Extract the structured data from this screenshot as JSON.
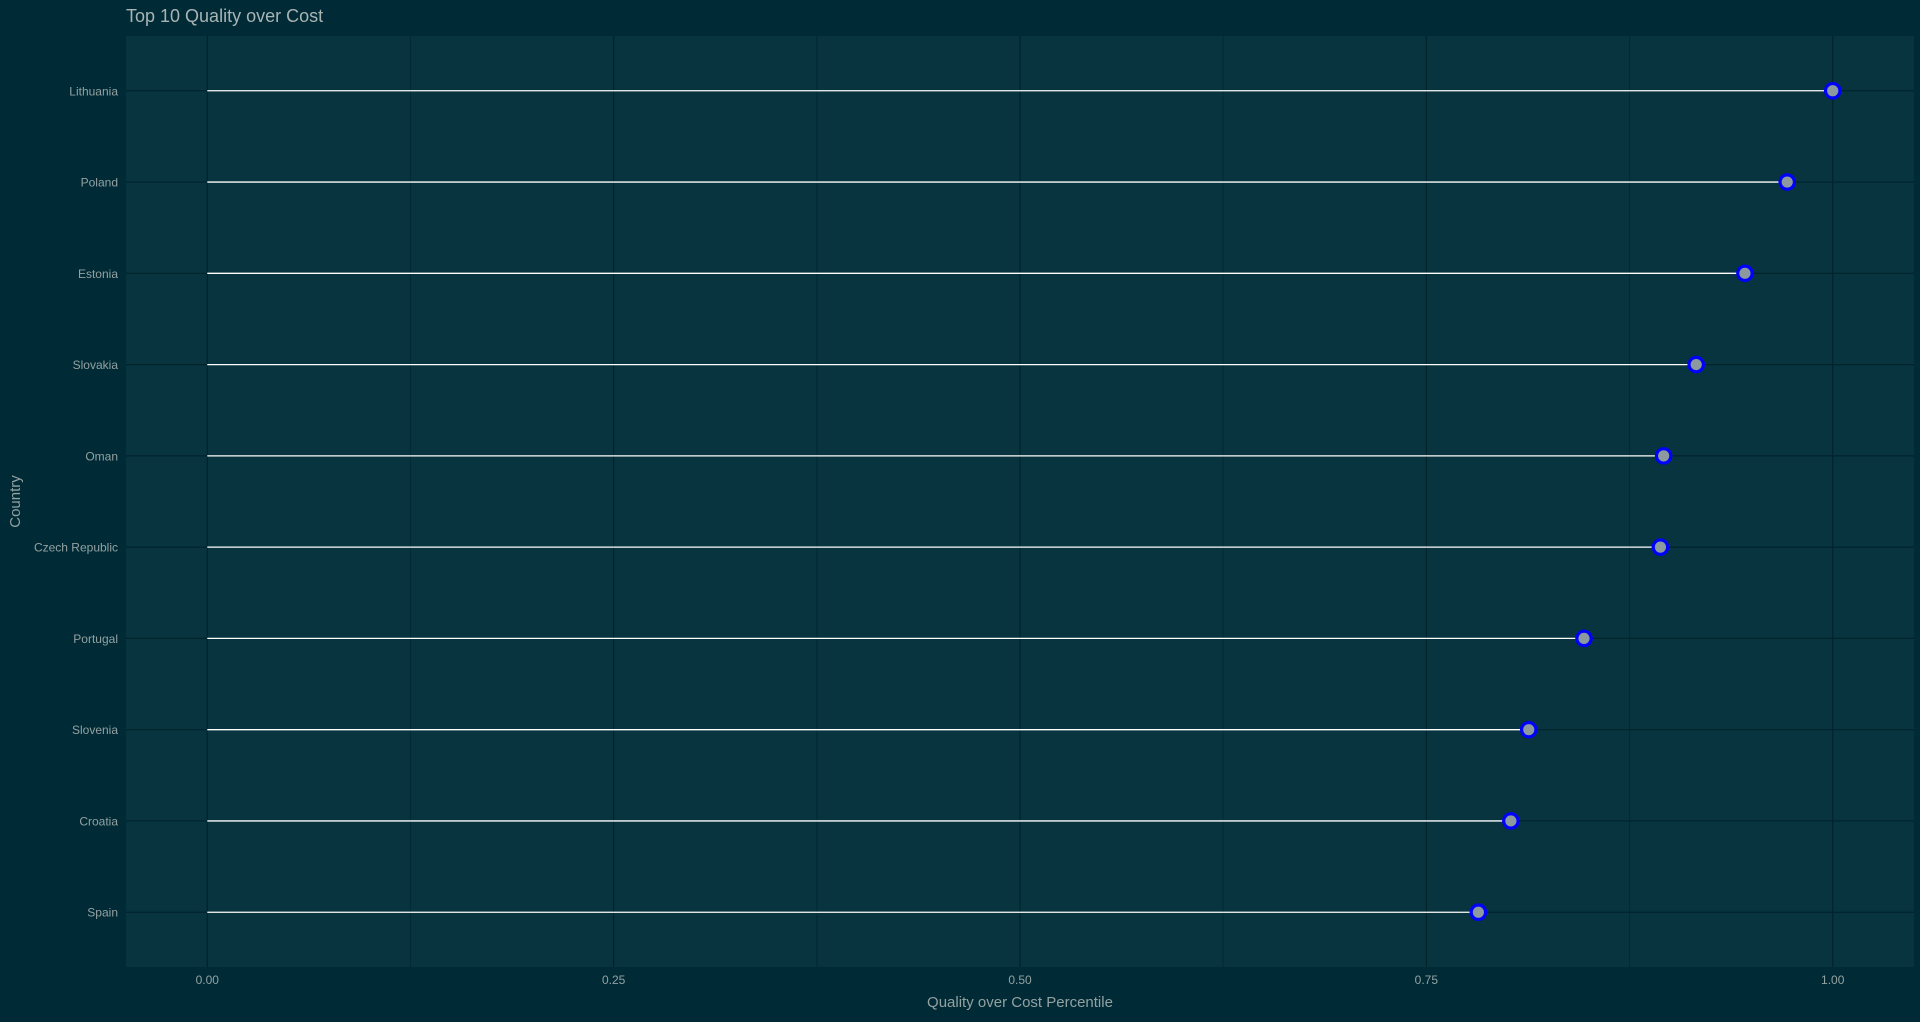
{
  "chart_data": {
    "type": "lollipop",
    "title": "Top 10 Quality over Cost",
    "xlabel": "Quality over Cost Percentile",
    "ylabel": "Country",
    "xlim": [
      -0.05,
      1.05
    ],
    "x_ticks": [
      0.0,
      0.25,
      0.5,
      0.75,
      1.0
    ],
    "x_tick_labels": [
      "0.00",
      "0.25",
      "0.50",
      "0.75",
      "1.00"
    ],
    "grid": true,
    "legend": "none",
    "categories": [
      "Lithuania",
      "Poland",
      "Estonia",
      "Slovakia",
      "Oman",
      "Czech Republic",
      "Portugal",
      "Slovenia",
      "Croatia",
      "Spain"
    ],
    "values": [
      1.0,
      0.972,
      0.946,
      0.916,
      0.896,
      0.894,
      0.847,
      0.813,
      0.802,
      0.782
    ]
  },
  "colors": {
    "background": "#002b36",
    "panel": "#07343f",
    "grid_major": "#00232c",
    "grid_minor": "#032a34",
    "segment": "#ffffff",
    "point_outline": "#0000ff",
    "point_fill": "#8c9aa0",
    "text": "#93a1a1",
    "title_text": "#a8b4b4"
  }
}
